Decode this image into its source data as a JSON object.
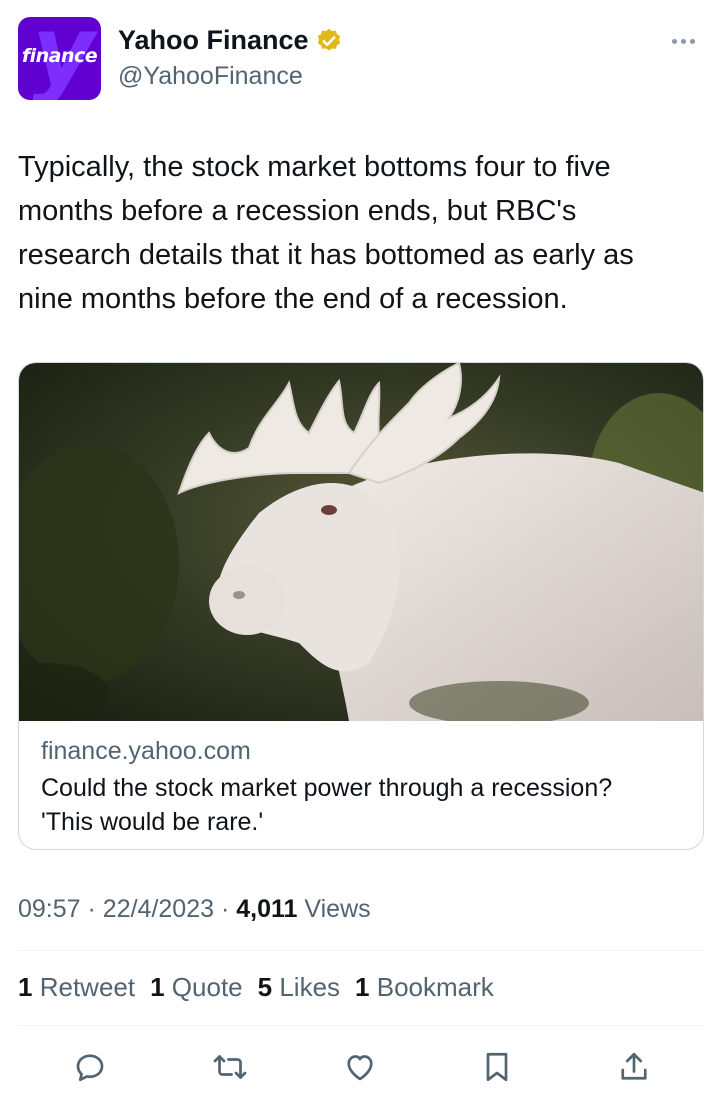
{
  "author": {
    "name": "Yahoo Finance",
    "handle": "@YahooFinance",
    "avatar_text": "finance",
    "avatar_color": "#6001d2",
    "verified_icon": "gold-verified-badge-icon"
  },
  "tweet": {
    "text": "Typically, the stock market bottoms four to five\nmonths before a recession ends, but RBC's\nresearch details that it has bottomed as early as\nnine months before the end of a recession."
  },
  "card": {
    "domain": "finance.yahoo.com",
    "title": "Could the stock market power through a recession? 'This would be rare.'"
  },
  "meta": {
    "time": "09:57",
    "date": "22/4/2023",
    "views_count": "4,011",
    "views_label": "Views"
  },
  "stats": {
    "retweets_count": "1",
    "retweets_label": "Retweet",
    "quotes_count": "1",
    "quotes_label": "Quote",
    "likes_count": "5",
    "likes_label": "Likes",
    "bookmarks_count": "1",
    "bookmarks_label": "Bookmark"
  },
  "actions": [
    "reply-icon",
    "retweet-icon",
    "like-icon",
    "bookmark-icon",
    "share-icon"
  ],
  "colors": {
    "text": "#0f1419",
    "secondary": "#536471",
    "border": "#cfd9de",
    "icon": "#536471"
  }
}
